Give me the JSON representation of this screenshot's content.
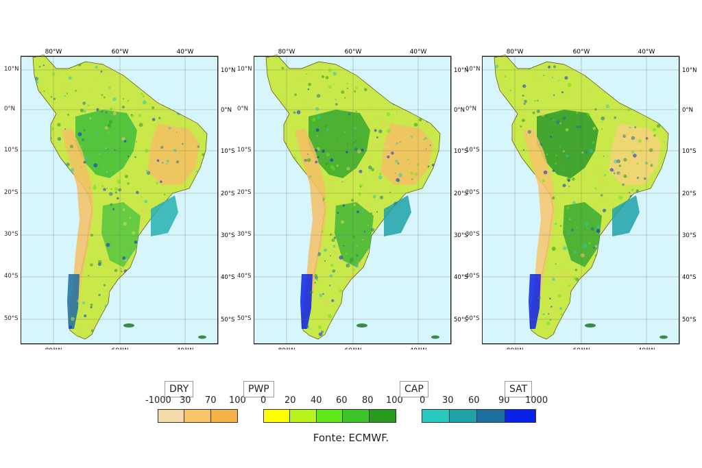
{
  "map": {
    "lon_ticks": [
      "80°W",
      "60°W",
      "40°W"
    ],
    "lat_ticks_left": [
      "10°N",
      "0°N",
      "10°S",
      "20°S",
      "30°S",
      "40°S",
      "50°S"
    ],
    "lat_ticks_right": [
      "10°N",
      "0°N",
      "10°S",
      "20°S",
      "30°S",
      "40°S",
      "50°S"
    ],
    "ocean_color": "#d6f6fb",
    "land_base_colors": [
      "#f5c064",
      "#c9e84a",
      "#58c43a"
    ]
  },
  "panels": [
    {
      "id": "panel-1"
    },
    {
      "id": "panel-2"
    },
    {
      "id": "panel-3"
    }
  ],
  "legend": {
    "groups": [
      {
        "title": "DRY",
        "ticks": [
          "-1000",
          "30",
          "70",
          "100"
        ],
        "colors": [
          "#f4d9a8",
          "#f7c46a",
          "#f6b24a"
        ]
      },
      {
        "title": "PWP",
        "ticks": [
          "0",
          "20",
          "40",
          "60",
          "80",
          "100"
        ],
        "colors": [
          "#ffff00",
          "#b8f21c",
          "#5ee81a",
          "#3cc428",
          "#2a9a1c"
        ]
      },
      {
        "title": "CAP",
        "ticks": [
          "0",
          "30",
          "60",
          "90"
        ],
        "colors": [
          "#27c9c0",
          "#1fa2a8",
          "#1c6fa0"
        ]
      },
      {
        "title": "SAT",
        "ticks": [
          "1000"
        ],
        "colors": [
          "#0a22e8"
        ]
      }
    ]
  },
  "source": "Fonte: ECMWF."
}
